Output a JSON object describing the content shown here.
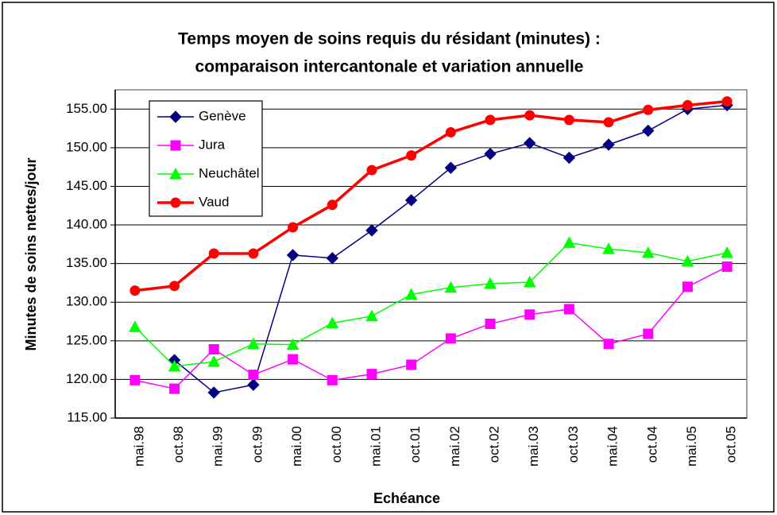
{
  "chart_data": {
    "type": "line",
    "title": [
      "Temps moyen de soins requis du résidant (minutes) :",
      "comparaison intercantonale et variation annuelle"
    ],
    "x_label": "Echéance",
    "y_label": "Minutes de soins nettes/jour",
    "categories": [
      "mai.98",
      "oct.98",
      "mai.99",
      "oct.99",
      "mai.00",
      "oct.00",
      "mai.01",
      "oct.01",
      "mai.02",
      "oct.02",
      "mai.03",
      "oct.03",
      "mai.04",
      "oct.04",
      "mai.05",
      "oct.05"
    ],
    "series": [
      {
        "name": "Genève",
        "color": "#000080",
        "marker": "diamond",
        "values": [
          null,
          122.5,
          118.3,
          119.3,
          136.1,
          135.7,
          139.3,
          143.2,
          147.4,
          149.2,
          150.6,
          148.7,
          150.4,
          152.2,
          155.0,
          155.5
        ]
      },
      {
        "name": "Jura",
        "color": "#ff00ff",
        "marker": "square",
        "values": [
          119.9,
          118.8,
          123.9,
          120.6,
          122.6,
          119.9,
          120.7,
          121.9,
          125.3,
          127.2,
          128.4,
          129.1,
          124.6,
          125.9,
          132.0,
          134.6
        ]
      },
      {
        "name": "Neuchâtel",
        "color": "#00ff00",
        "marker": "triangle",
        "values": [
          126.8,
          121.7,
          122.3,
          124.6,
          124.5,
          127.3,
          128.2,
          131.0,
          131.9,
          132.4,
          132.6,
          137.7,
          136.9,
          136.4,
          135.3,
          136.4
        ]
      },
      {
        "name": "Vaud",
        "color": "#ff0000",
        "marker": "circle",
        "values": [
          131.5,
          132.1,
          136.3,
          136.3,
          139.7,
          142.6,
          147.1,
          149.0,
          152.0,
          153.6,
          154.2,
          153.6,
          153.3,
          154.9,
          155.5,
          156.0
        ]
      }
    ],
    "ylim": [
      115,
      157.5
    ],
    "yticks": [
      {
        "value": 115,
        "label": "115.00"
      },
      {
        "value": 120,
        "label": "120.00"
      },
      {
        "value": 125,
        "label": "125.00"
      },
      {
        "value": 130,
        "label": "130.00"
      },
      {
        "value": 135,
        "label": "135.00"
      },
      {
        "value": 140,
        "label": "140.00"
      },
      {
        "value": 145,
        "label": "145.00"
      },
      {
        "value": 150,
        "label": "150.00"
      },
      {
        "value": 155,
        "label": "155.00"
      }
    ],
    "grid": true,
    "legend": "upper left"
  }
}
